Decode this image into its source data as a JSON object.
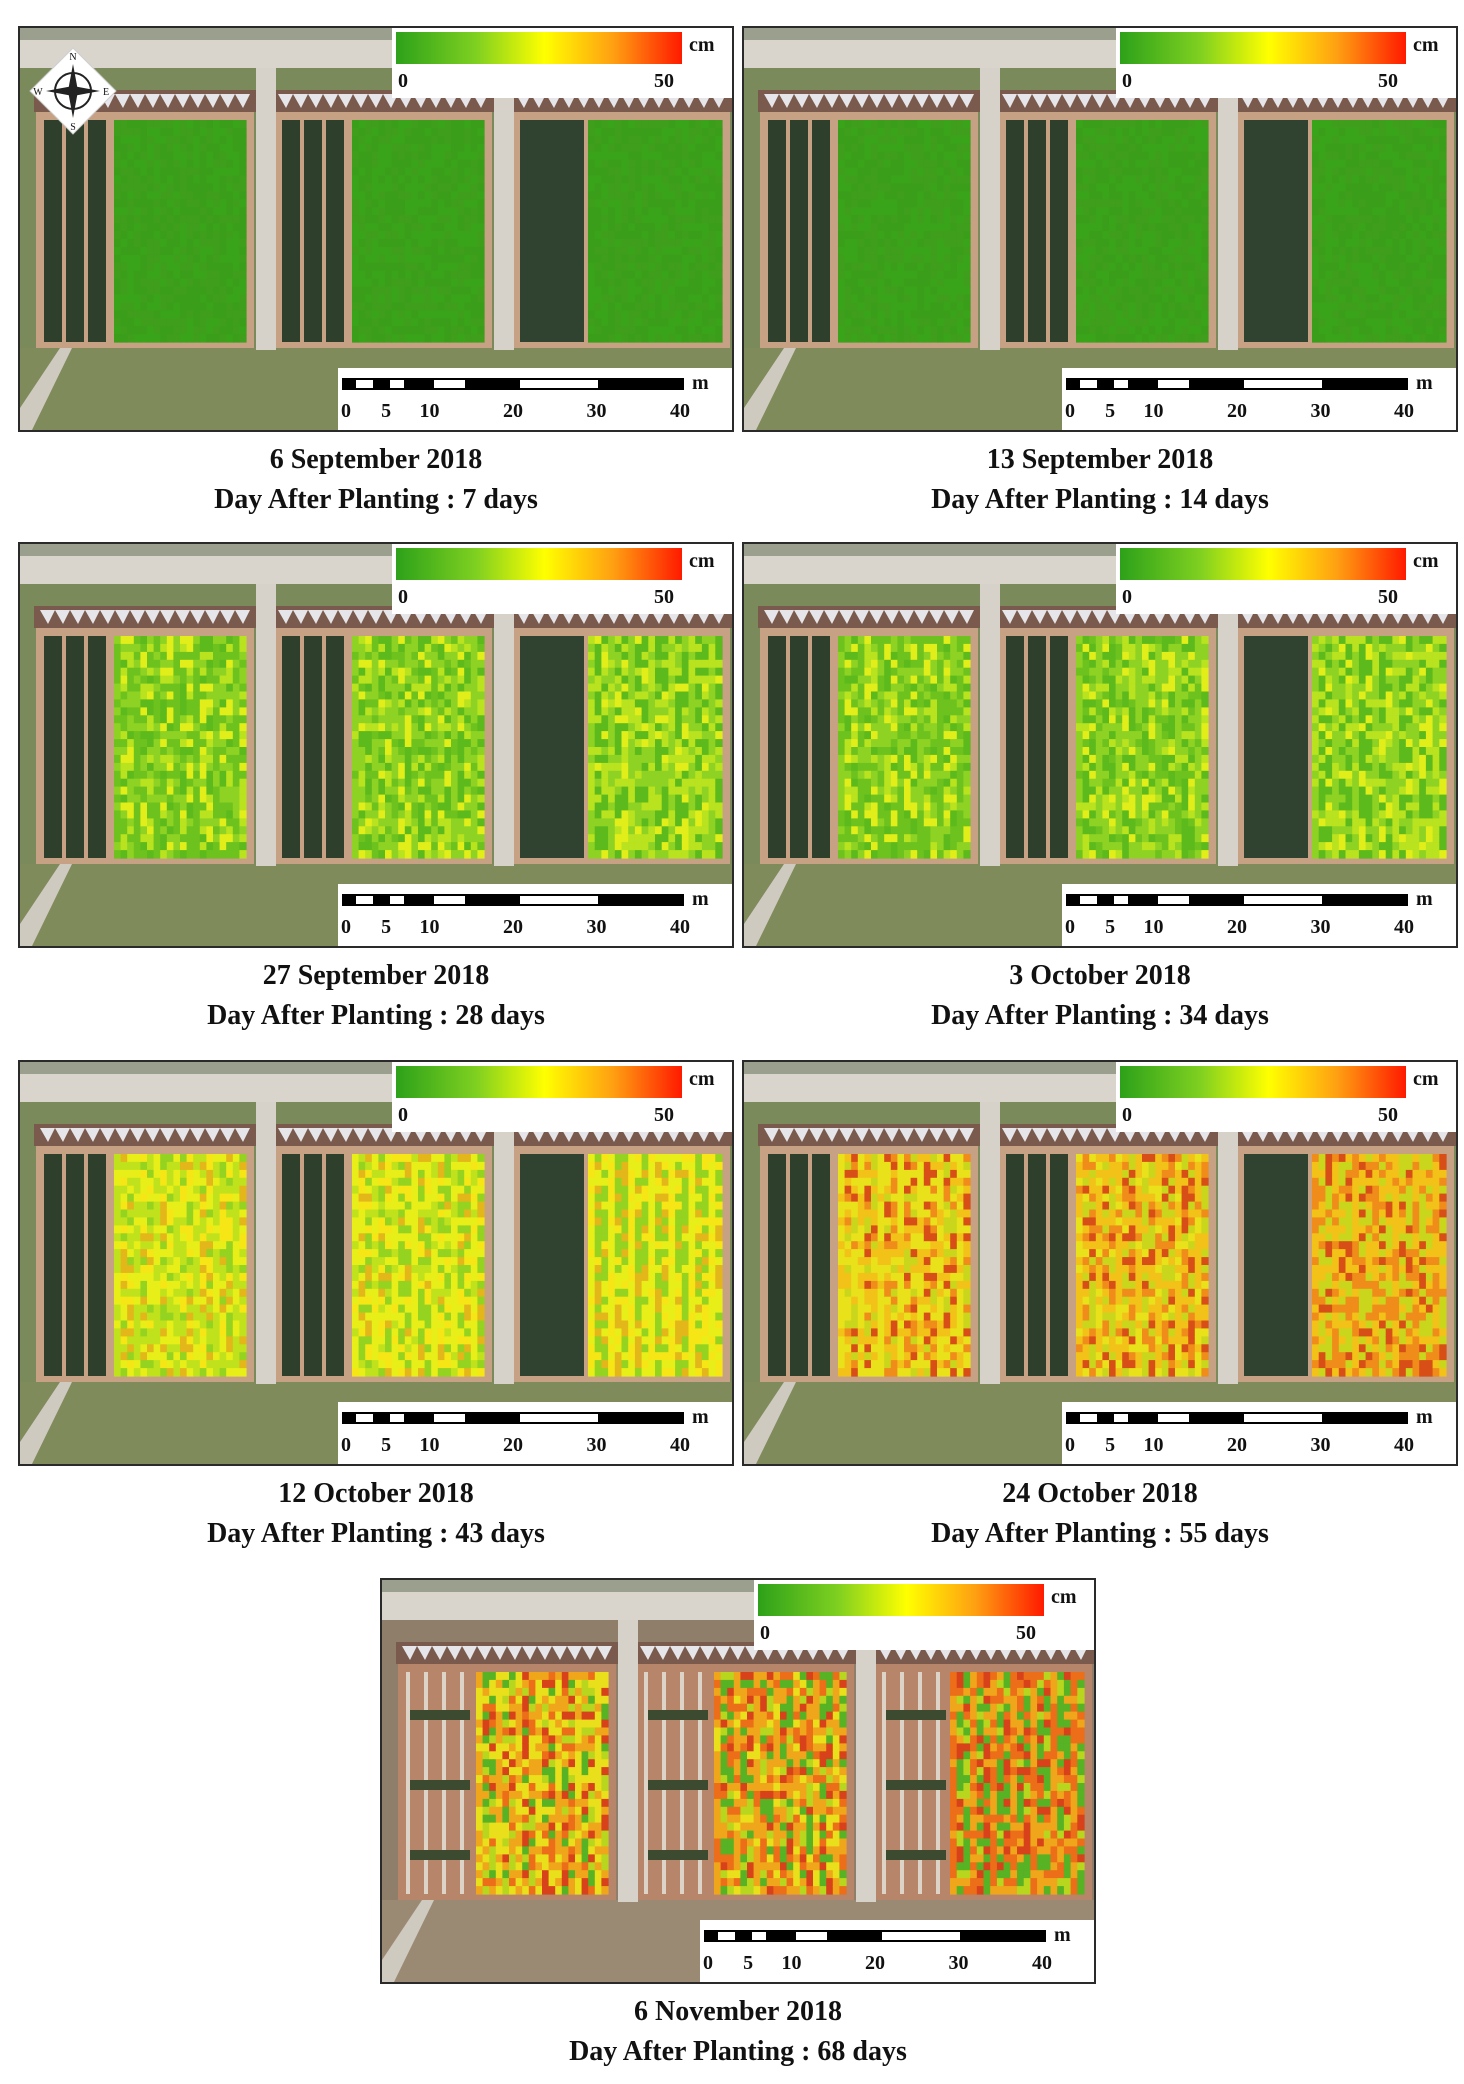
{
  "legend": {
    "unit": "cm",
    "min": "0",
    "max": "50"
  },
  "scale": {
    "unit": "m",
    "ticks": [
      "0",
      "5",
      "10",
      "20",
      "30",
      "40"
    ]
  },
  "compass": {
    "labels": [
      "N",
      "E",
      "S",
      "W"
    ]
  },
  "panels": [
    {
      "date": "6 September 2018",
      "dap": "Day After Planting : 7 days",
      "stage": 0
    },
    {
      "date": "13 September 2018",
      "dap": "Day After Planting : 14 days",
      "stage": 0
    },
    {
      "date": "27 September 2018",
      "dap": "Day After Planting : 28 days",
      "stage": 1
    },
    {
      "date": "3 October 2018",
      "dap": "Day After Planting : 34 days",
      "stage": 1
    },
    {
      "date": "12 October  2018",
      "dap": "Day After Planting : 43 days",
      "stage": 2
    },
    {
      "date": "24 October 2018",
      "dap": "Day After Planting : 55 days",
      "stage": 3
    },
    {
      "date": "6 November 2018",
      "dap": "Day After Planting : 68 days",
      "stage": 4
    }
  ]
}
